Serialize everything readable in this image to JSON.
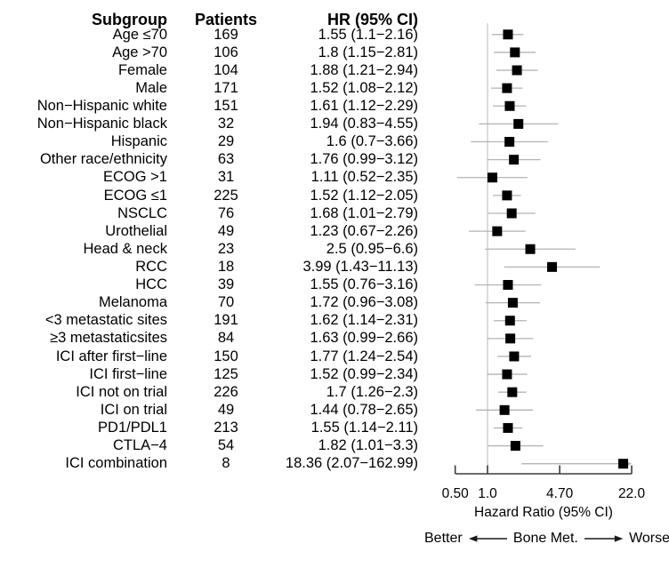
{
  "chart_data": {
    "type": "forest",
    "title": "",
    "table_headers": {
      "subgroup": "Subgroup",
      "patients": "Patients",
      "hr": "HR (95% CI)"
    },
    "rows": [
      {
        "label": "Age ≤70",
        "patients": 169,
        "hr": 1.55,
        "lo": 1.1,
        "hi": 2.16,
        "hr_text": "1.55 (1.1−2.16)"
      },
      {
        "label": "Age >70",
        "patients": 106,
        "hr": 1.8,
        "lo": 1.15,
        "hi": 2.81,
        "hr_text": "1.8 (1.15−2.81)"
      },
      {
        "label": "Female",
        "patients": 104,
        "hr": 1.88,
        "lo": 1.21,
        "hi": 2.94,
        "hr_text": "1.88 (1.21−2.94)"
      },
      {
        "label": "Male",
        "patients": 171,
        "hr": 1.52,
        "lo": 1.08,
        "hi": 2.12,
        "hr_text": "1.52 (1.08−2.12)"
      },
      {
        "label": "Non−Hispanic white",
        "patients": 151,
        "hr": 1.61,
        "lo": 1.12,
        "hi": 2.29,
        "hr_text": "1.61 (1.12−2.29)"
      },
      {
        "label": "Non−Hispanic black",
        "patients": 32,
        "hr": 1.94,
        "lo": 0.83,
        "hi": 4.55,
        "hr_text": "1.94 (0.83−4.55)"
      },
      {
        "label": "Hispanic",
        "patients": 29,
        "hr": 1.6,
        "lo": 0.7,
        "hi": 3.66,
        "hr_text": "1.6 (0.7−3.66)"
      },
      {
        "label": "Other race/ethnicity",
        "patients": 63,
        "hr": 1.76,
        "lo": 0.99,
        "hi": 3.12,
        "hr_text": "1.76 (0.99−3.12)"
      },
      {
        "label": "ECOG >1",
        "patients": 31,
        "hr": 1.11,
        "lo": 0.52,
        "hi": 2.35,
        "hr_text": "1.11 (0.52−2.35)"
      },
      {
        "label": "ECOG ≤1",
        "patients": 225,
        "hr": 1.52,
        "lo": 1.12,
        "hi": 2.05,
        "hr_text": "1.52 (1.12−2.05)"
      },
      {
        "label": "NSCLC",
        "patients": 76,
        "hr": 1.68,
        "lo": 1.01,
        "hi": 2.79,
        "hr_text": "1.68 (1.01−2.79)"
      },
      {
        "label": "Urothelial",
        "patients": 49,
        "hr": 1.23,
        "lo": 0.67,
        "hi": 2.26,
        "hr_text": "1.23 (0.67−2.26)"
      },
      {
        "label": "Head & neck",
        "patients": 23,
        "hr": 2.5,
        "lo": 0.95,
        "hi": 6.6,
        "hr_text": "2.5 (0.95−6.6)"
      },
      {
        "label": "RCC",
        "patients": 18,
        "hr": 3.99,
        "lo": 1.43,
        "hi": 11.13,
        "hr_text": "3.99 (1.43−11.13)"
      },
      {
        "label": "HCC",
        "patients": 39,
        "hr": 1.55,
        "lo": 0.76,
        "hi": 3.16,
        "hr_text": "1.55 (0.76−3.16)"
      },
      {
        "label": "Melanoma",
        "patients": 70,
        "hr": 1.72,
        "lo": 0.96,
        "hi": 3.08,
        "hr_text": "1.72 (0.96−3.08)"
      },
      {
        "label": "<3 metastatic sites",
        "patients": 191,
        "hr": 1.62,
        "lo": 1.14,
        "hi": 2.31,
        "hr_text": "1.62 (1.14−2.31)"
      },
      {
        "label": "≥3 metastaticsites",
        "patients": 84,
        "hr": 1.63,
        "lo": 0.99,
        "hi": 2.66,
        "hr_text": "1.63 (0.99−2.66)"
      },
      {
        "label": "ICI after first−line",
        "patients": 150,
        "hr": 1.77,
        "lo": 1.24,
        "hi": 2.54,
        "hr_text": "1.77 (1.24−2.54)"
      },
      {
        "label": "ICI first−line",
        "patients": 125,
        "hr": 1.52,
        "lo": 0.99,
        "hi": 2.34,
        "hr_text": "1.52 (0.99−2.34)"
      },
      {
        "label": "ICI not on trial",
        "patients": 226,
        "hr": 1.7,
        "lo": 1.26,
        "hi": 2.3,
        "hr_text": "1.7 (1.26−2.3)"
      },
      {
        "label": "ICI on trial",
        "patients": 49,
        "hr": 1.44,
        "lo": 0.78,
        "hi": 2.65,
        "hr_text": "1.44 (0.78−2.65)"
      },
      {
        "label": "PD1/PDL1",
        "patients": 213,
        "hr": 1.55,
        "lo": 1.14,
        "hi": 2.11,
        "hr_text": "1.55 (1.14−2.11)"
      },
      {
        "label": "CTLA−4",
        "patients": 54,
        "hr": 1.82,
        "lo": 1.01,
        "hi": 3.3,
        "hr_text": "1.82 (1.01−3.3)"
      },
      {
        "label": "ICI combination",
        "patients": 8,
        "hr": 18.36,
        "lo": 2.07,
        "hi": 162.99,
        "hr_text": "18.36 (2.07−162.99)"
      }
    ],
    "x_axis": {
      "scale": "log",
      "range": [
        0.5,
        22.0
      ],
      "ticks": [
        0.5,
        1.0,
        4.7,
        22.0
      ],
      "tick_labels": [
        "0.50",
        "1.0",
        "4.70",
        "22.0"
      ],
      "label": "Hazard Ratio (95% CI)",
      "reference_line": 1.0
    },
    "direction_legend": {
      "better": "Better",
      "center": "Bone Met.",
      "worse": "Worse"
    },
    "colors": {
      "marker": "#000000",
      "ci_line": "#b3b3b3",
      "reference_line": "#c9c9c9",
      "axis": "#3c3c3c",
      "text": "#000000"
    },
    "legend_position": "none",
    "grid": false
  }
}
